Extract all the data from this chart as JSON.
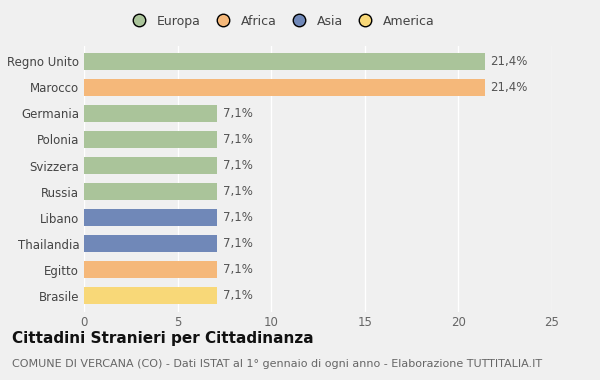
{
  "categories": [
    "Brasile",
    "Egitto",
    "Thailandia",
    "Libano",
    "Russia",
    "Svizzera",
    "Polonia",
    "Germania",
    "Marocco",
    "Regno Unito"
  ],
  "values": [
    7.1,
    7.1,
    7.1,
    7.1,
    7.1,
    7.1,
    7.1,
    7.1,
    21.4,
    21.4
  ],
  "colors": [
    "#f8d878",
    "#f5b87a",
    "#7088b8",
    "#7088b8",
    "#aac49a",
    "#aac49a",
    "#aac49a",
    "#aac49a",
    "#f5b87a",
    "#aac49a"
  ],
  "labels": [
    "7,1%",
    "7,1%",
    "7,1%",
    "7,1%",
    "7,1%",
    "7,1%",
    "7,1%",
    "7,1%",
    "21,4%",
    "21,4%"
  ],
  "legend_labels": [
    "Europa",
    "Africa",
    "Asia",
    "America"
  ],
  "legend_colors": [
    "#aac49a",
    "#f5b87a",
    "#7088b8",
    "#f8d878"
  ],
  "title": "Cittadini Stranieri per Cittadinanza",
  "subtitle": "COMUNE DI VERCANA (CO) - Dati ISTAT al 1° gennaio di ogni anno - Elaborazione TUTTITALIA.IT",
  "xlim": [
    0,
    25
  ],
  "xticks": [
    0,
    5,
    10,
    15,
    20,
    25
  ],
  "background_color": "#f0f0f0",
  "bar_height": 0.65,
  "title_fontsize": 11,
  "subtitle_fontsize": 8,
  "label_fontsize": 8.5,
  "tick_fontsize": 8.5,
  "legend_fontsize": 9
}
